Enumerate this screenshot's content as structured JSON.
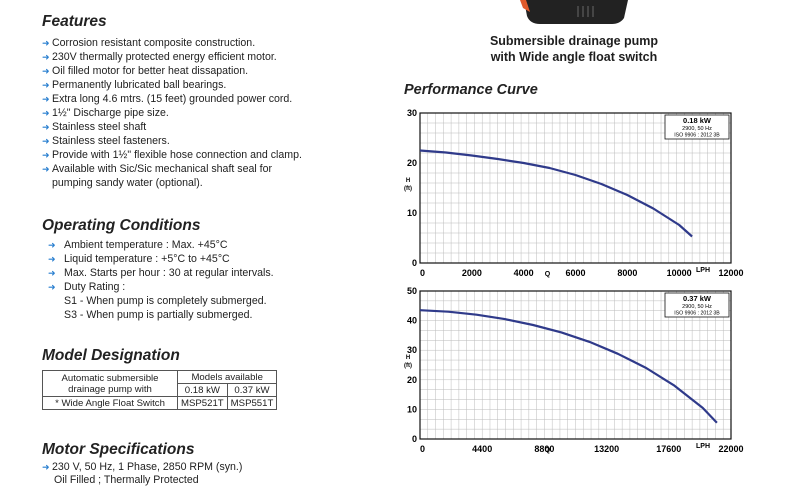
{
  "features": {
    "title": "Features",
    "items": [
      "Corrosion resistant composite construction.",
      "230V thermally protected energy efficient motor.",
      "Oil filled motor for better heat dissapation.",
      "Permanently lubricated ball bearings.",
      "Extra long 4.6 mtrs. (15 feet) grounded power cord.",
      "1½\" Discharge pipe size.",
      "Stainless steel shaft",
      "Stainless steel fasteners.",
      "Provide with 1½\" flexible hose connection and clamp.",
      "Available with Sic/Sic mechanical shaft seal for",
      "pumping sandy water (optional)."
    ]
  },
  "operating": {
    "title": "Operating Conditions",
    "items": [
      "Ambient temperature : Max. +45°C",
      "Liquid temperature : +5°C to +45°C",
      "Max. Starts per hour : 30 at regular intervals.",
      "Duty Rating :"
    ],
    "duty": [
      "S1 - When pump is completely submerged.",
      "S3 - When pump is partially submerged."
    ]
  },
  "model": {
    "title": "Model Designation",
    "label_line1": "Automatic submersible",
    "label_line2": "drainage pump with",
    "models_available": "Models available",
    "power1": "0.18 kW",
    "power2": "0.37 kW",
    "row_label": "* Wide Angle Float Switch",
    "model1": "MSP521T",
    "model2": "MSP551T"
  },
  "motor": {
    "title": "Motor Specifications",
    "line1": "230 V, 50 Hz, 1 Phase, 2850 RPM (syn.)",
    "line2": "Oil Filled ; Thermally Protected"
  },
  "product": {
    "caption1": "Submersible drainage pump",
    "caption2": "with Wide angle float switch"
  },
  "performance_title": "Performance Curve",
  "colors": {
    "curve": "#2f3a8a",
    "bullet": "#2a7fd0",
    "pump": "#222222",
    "pump_accent": "#e05a2b"
  },
  "chart_data": [
    {
      "type": "line",
      "legend": [
        "0.18 kW",
        "2900, 50 Hz",
        "ISO 9906 : 2012 3B"
      ],
      "xlabel": "LPH",
      "ylabel": "H (ft)",
      "center_label": "Q",
      "xlim": [
        0,
        12000
      ],
      "ylim": [
        0,
        30
      ],
      "x_ticks": [
        0,
        2000,
        4000,
        6000,
        8000,
        10000,
        12000
      ],
      "x_tick_labels": [
        "0",
        "2000",
        "4000",
        "6000",
        "8000",
        "10000",
        "12000"
      ],
      "y_ticks": [
        0,
        10,
        20,
        30
      ],
      "y_tick_labels": [
        "0",
        "10",
        "20",
        "30"
      ],
      "series": [
        {
          "x": [
            0,
            1000,
            2000,
            3000,
            4000,
            5000,
            6000,
            7000,
            8000,
            9000,
            10000,
            10500
          ],
          "y": [
            22.5,
            22.1,
            21.5,
            20.8,
            20.0,
            19.0,
            17.6,
            15.8,
            13.6,
            10.9,
            7.6,
            5.3
          ]
        }
      ]
    },
    {
      "type": "line",
      "legend": [
        "0.37 kW",
        "2900, 50 Hz",
        "ISO 9906 : 2012 3B"
      ],
      "xlabel": "LPH",
      "ylabel": "H (ft)",
      "center_label": "Q",
      "xlim": [
        0,
        22000
      ],
      "ylim": [
        0,
        50
      ],
      "x_ticks": [
        0,
        4400,
        8800,
        13200,
        17600,
        22000
      ],
      "x_tick_labels": [
        "0",
        "4400",
        "8800",
        "13200",
        "17600",
        "22000"
      ],
      "y_ticks": [
        0,
        10,
        20,
        30,
        40,
        50
      ],
      "y_tick_labels": [
        "0",
        "10",
        "20",
        "30",
        "40",
        "50"
      ],
      "series": [
        {
          "x": [
            0,
            2000,
            4000,
            6000,
            8000,
            10000,
            12000,
            14000,
            16000,
            18000,
            20000,
            21000
          ],
          "y": [
            43.5,
            43.0,
            42.0,
            40.5,
            38.5,
            36.0,
            32.8,
            28.8,
            24.0,
            18.0,
            10.5,
            5.5
          ]
        }
      ]
    }
  ]
}
